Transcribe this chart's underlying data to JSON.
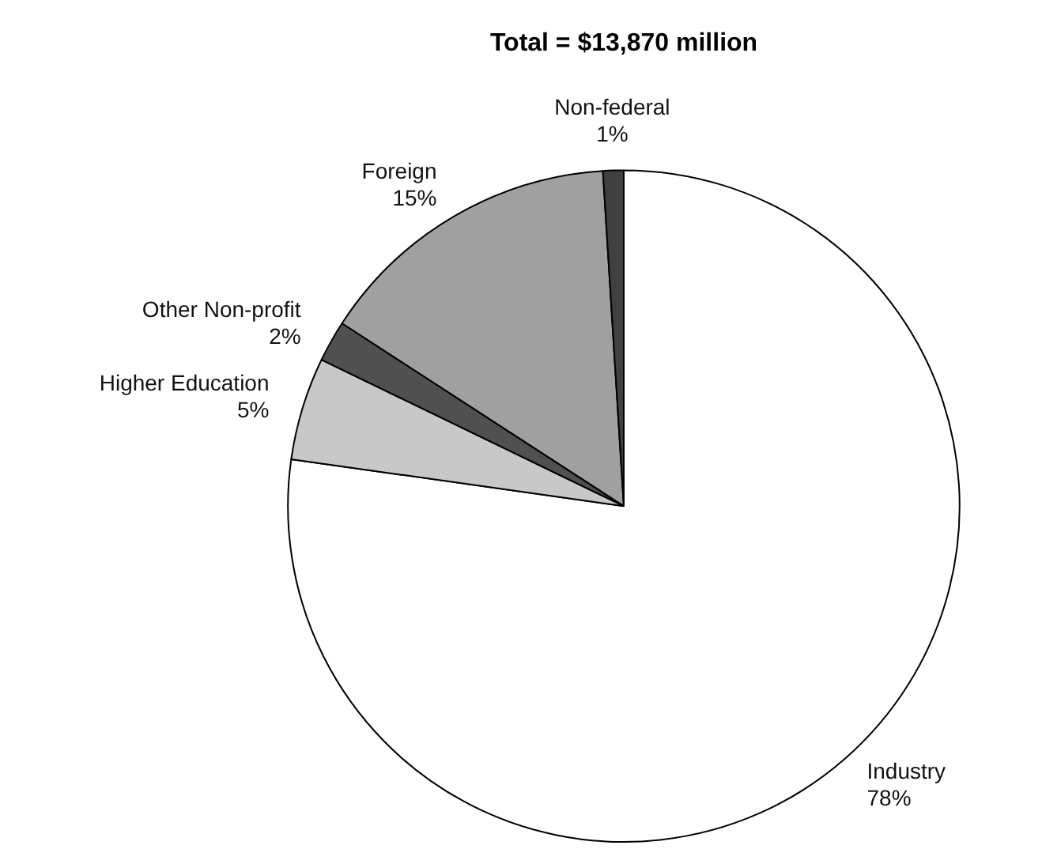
{
  "chart_data": {
    "type": "pie",
    "title": "Total = $13,870 million",
    "categories": [
      "Industry",
      "Higher Education",
      "Other Non-profit",
      "Foreign",
      "Non-federal"
    ],
    "values": [
      78,
      5,
      2,
      15,
      1
    ],
    "value_labels": [
      "78%",
      "5%",
      "2%",
      "15%",
      "1%"
    ],
    "colors": [
      "#ffffff",
      "#c8c8c8",
      "#505050",
      "#a0a0a0",
      "#404040"
    ],
    "legend": false
  }
}
